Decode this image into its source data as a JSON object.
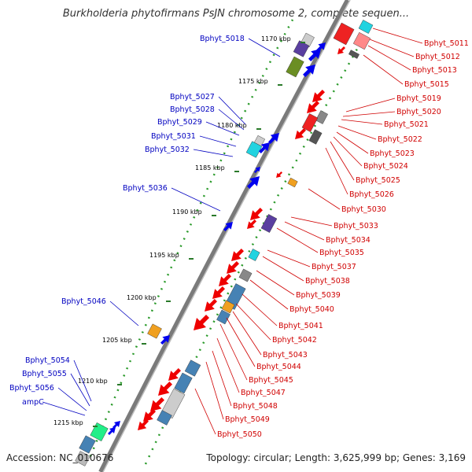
{
  "title": "Burkholderia phytofirmans PsJN chromosome 2, complete sequen...",
  "footer": {
    "accession": "Accession: NC_010676",
    "summary": "Topology: circular; Length: 3,625,999 bp; Genes: 3,169"
  },
  "colors": {
    "backbone": "#808080",
    "forward_label": "#0000c0",
    "reverse_label": "#d00000",
    "tick_dots": "#2a9a2a"
  },
  "kbp_ticks": [
    "1170 kbp",
    "1175 kbp",
    "1180 kbp",
    "1185 kbp",
    "1190 kbp",
    "1195 kbp",
    "1200 kbp",
    "1205 kbp",
    "1210 kbp",
    "1215 kbp"
  ],
  "left_labels": [
    "Bphyt_5018",
    "Bphyt_5027",
    "Bphyt_5028",
    "Bphyt_5029",
    "Bphyt_5031",
    "Bphyt_5032",
    "Bphyt_5036",
    "Bphyt_5046",
    "Bphyt_5054",
    "Bphyt_5055",
    "Bphyt_5056",
    "ampC"
  ],
  "right_labels": [
    "Bphyt_5011",
    "Bphyt_5012",
    "Bphyt_5013",
    "Bphyt_5015",
    "Bphyt_5019",
    "Bphyt_5020",
    "Bphyt_5021",
    "Bphyt_5022",
    "Bphyt_5023",
    "Bphyt_5024",
    "Bphyt_5025",
    "Bphyt_5026",
    "Bphyt_5030",
    "Bphyt_5033",
    "Bphyt_5034",
    "Bphyt_5035",
    "Bphyt_5037",
    "Bphyt_5038",
    "Bphyt_5039",
    "Bphyt_5040",
    "Bphyt_5041",
    "Bphyt_5042",
    "Bphyt_5043",
    "Bphyt_5044",
    "Bphyt_5045",
    "Bphyt_5047",
    "Bphyt_5048",
    "Bphyt_5049",
    "Bphyt_5050"
  ]
}
